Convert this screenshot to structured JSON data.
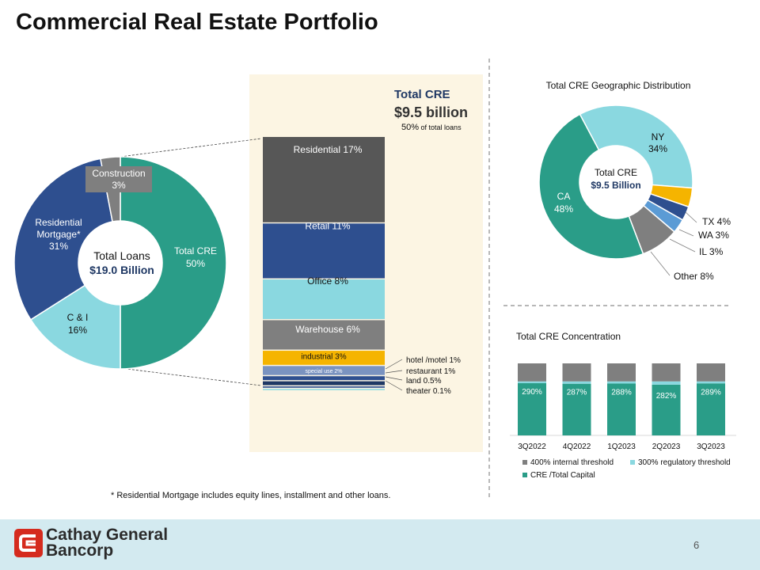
{
  "title": "Commercial Real Estate Portfolio",
  "footnote": "* Residential Mortgage includes equity lines, installment and other loans.",
  "page_number": "6",
  "company": {
    "line1": "Cathay General",
    "line2": "Bancorp"
  },
  "colors": {
    "teal": "#2a9d88",
    "light_teal": "#8ad8e0",
    "navy": "#2e4f8f",
    "dark_gray": "#575757",
    "gray": "#7f7f7f",
    "orange": "#f5b400",
    "panel": "#fcf5e3",
    "logo_red": "#d52b1e"
  },
  "total_cre": {
    "label": "Total CRE",
    "amount": "$9.5 billion",
    "share_pct": "50%",
    "share_text": " of total loans"
  },
  "chart_data": [
    {
      "type": "pie",
      "variant": "donut",
      "center_label": "Total Loans",
      "center_value": "$19.0 Billion",
      "slices": [
        {
          "name": "Total CRE",
          "value": 50,
          "label": "50%",
          "color": "#2a9d88"
        },
        {
          "name": "C & I",
          "value": 16,
          "label": "16%",
          "color": "#8ad8e0"
        },
        {
          "name": "Residential Mortgage*",
          "value": 31,
          "label": "31%",
          "color": "#2e4f8f"
        },
        {
          "name": "Construction",
          "value": 3,
          "label": "3%",
          "color": "#7f7f7f"
        }
      ]
    },
    {
      "type": "bar",
      "variant": "stacked-100",
      "segments": [
        {
          "name": "Residential",
          "label": "17%",
          "value": 17,
          "color": "#575757"
        },
        {
          "name": "Retail",
          "label": "11%",
          "value": 11,
          "color": "#2e4f8f"
        },
        {
          "name": "Office",
          "label": "8%",
          "value": 8,
          "color": "#8ad8e0"
        },
        {
          "name": "Warehouse",
          "label": "6%",
          "value": 6,
          "color": "#7f7f7f"
        },
        {
          "name": "industrial",
          "label": "3%",
          "value": 3,
          "color": "#f5b400"
        },
        {
          "name": "special use",
          "label": "2%",
          "value": 2,
          "color": "#7a93c0"
        },
        {
          "name": "hotel /motel",
          "label": "1%",
          "value": 1,
          "color": "#2e4f8f"
        },
        {
          "name": "restaurant",
          "label": "1%",
          "value": 1,
          "color": "#1f3864"
        },
        {
          "name": "land",
          "label": "0.5%",
          "value": 0.5,
          "color": "#2e4f8f"
        },
        {
          "name": "theater",
          "label": "0.1%",
          "value": 0.1,
          "color": "#8ad8e0"
        }
      ]
    },
    {
      "type": "pie",
      "variant": "donut",
      "title": "Total CRE Geographic Distribution",
      "center_label": "Total CRE",
      "center_value": "$9.5 Billion",
      "slices": [
        {
          "name": "NY",
          "value": 34,
          "label": "34%",
          "color": "#8ad8e0"
        },
        {
          "name": "TX",
          "value": 4,
          "label": "4%",
          "color": "#f5b400"
        },
        {
          "name": "WA",
          "value": 3,
          "label": "3%",
          "color": "#2e4f8f"
        },
        {
          "name": "IL",
          "value": 3,
          "label": "3%",
          "color": "#5b9bd5"
        },
        {
          "name": "Other",
          "value": 8,
          "label": "8%",
          "color": "#7f7f7f"
        },
        {
          "name": "CA",
          "value": 48,
          "label": "48%",
          "color": "#2a9d88"
        }
      ]
    },
    {
      "type": "bar",
      "variant": "stacked",
      "title": "Total CRE Concentration",
      "categories": [
        "3Q2022",
        "4Q2022",
        "1Q2023",
        "2Q2023",
        "3Q2023"
      ],
      "ylim": [
        0,
        400
      ],
      "series": [
        {
          "name": "CRE /Total Capital",
          "values": [
            290,
            287,
            288,
            282,
            289
          ],
          "labels": [
            "290%",
            "287%",
            "288%",
            "282%",
            "289%"
          ],
          "color": "#2a9d88"
        },
        {
          "name": "300% regulatory threshold",
          "values": [
            10,
            13,
            12,
            18,
            11
          ],
          "color": "#8ad8e0"
        },
        {
          "name": "400% internal threshold",
          "values": [
            100,
            100,
            100,
            100,
            100
          ],
          "color": "#7f7f7f"
        }
      ],
      "legend": [
        "400% internal threshold",
        "300% regulatory threshold",
        "CRE /Total Capital"
      ]
    }
  ]
}
